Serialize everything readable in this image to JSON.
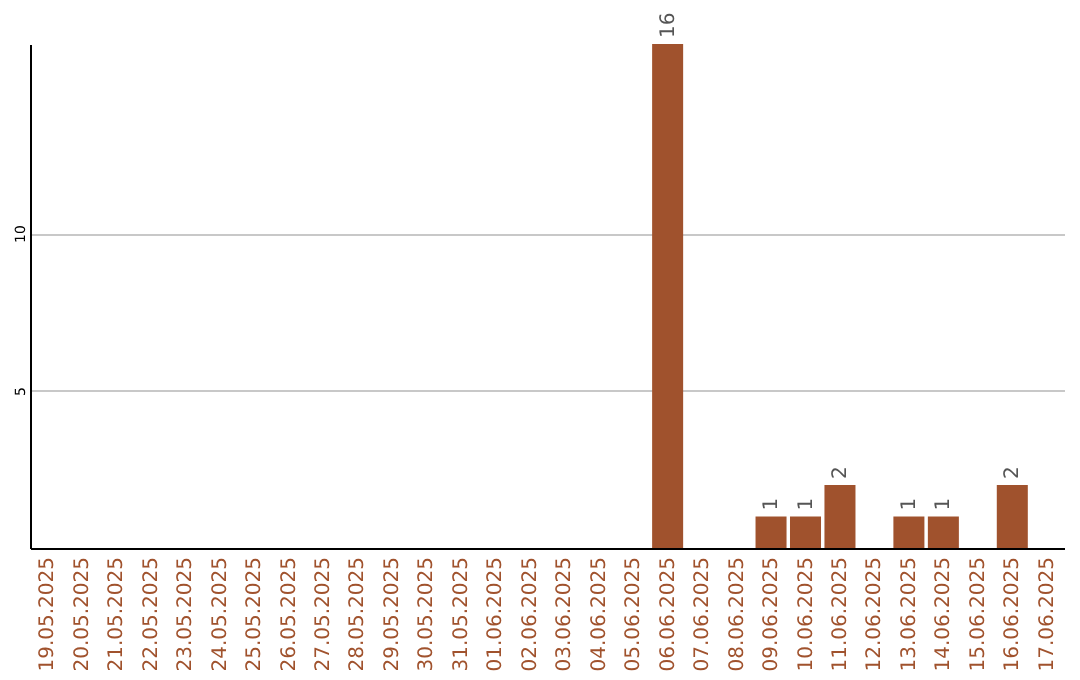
{
  "chart_data": {
    "type": "bar",
    "categories": [
      "19.05.2025",
      "20.05.2025",
      "21.05.2025",
      "22.05.2025",
      "23.05.2025",
      "24.05.2025",
      "25.05.2025",
      "26.05.2025",
      "27.05.2025",
      "28.05.2025",
      "29.05.2025",
      "30.05.2025",
      "31.05.2025",
      "01.06.2025",
      "02.06.2025",
      "03.06.2025",
      "04.06.2025",
      "05.06.2025",
      "06.06.2025",
      "07.06.2025",
      "08.06.2025",
      "09.06.2025",
      "10.06.2025",
      "11.06.2025",
      "12.06.2025",
      "13.06.2025",
      "14.06.2025",
      "15.06.2025",
      "16.06.2025",
      "17.06.2025"
    ],
    "values": [
      0,
      0,
      0,
      0,
      0,
      0,
      0,
      0,
      0,
      0,
      0,
      0,
      0,
      0,
      0,
      0,
      0,
      0,
      16,
      0,
      0,
      1,
      1,
      2,
      0,
      1,
      1,
      0,
      2,
      0
    ],
    "value_labels": [
      null,
      null,
      null,
      null,
      null,
      null,
      null,
      null,
      null,
      null,
      null,
      null,
      null,
      null,
      null,
      null,
      null,
      null,
      "16",
      null,
      null,
      "1",
      "1",
      "2",
      null,
      "1",
      "1",
      null,
      "2",
      null
    ],
    "color": "#a0522d",
    "ylim": [
      0,
      16
    ],
    "yticks": [
      5,
      10
    ],
    "grid": "y"
  }
}
